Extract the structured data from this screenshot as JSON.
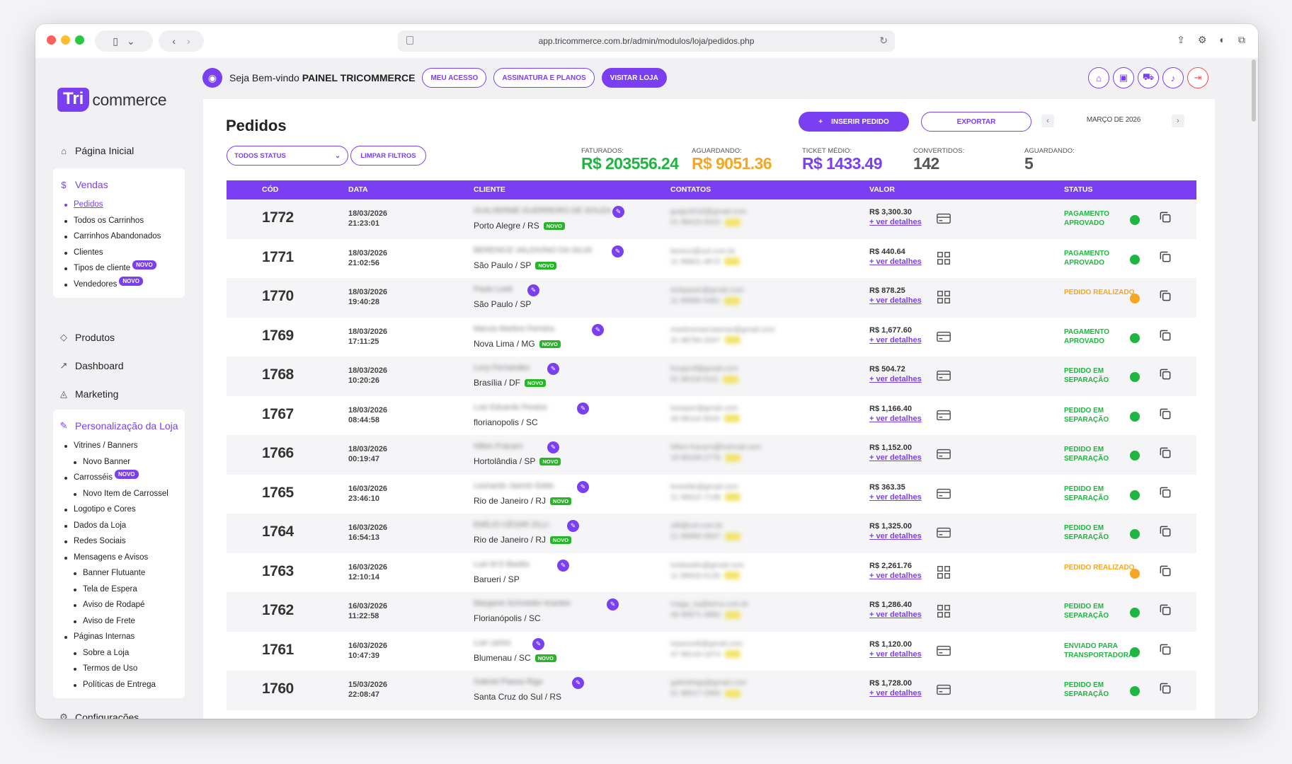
{
  "browser": {
    "url": "app.tricommerce.com.br/admin/modulos/loja/pedidos.php"
  },
  "logo": {
    "badge": "Tri",
    "text": "commerce"
  },
  "nav": {
    "home": "Página Inicial",
    "vendas": {
      "label": "Vendas",
      "items": [
        {
          "label": "Pedidos",
          "active": true,
          "novo": false
        },
        {
          "label": "Todos os Carrinhos",
          "novo": false
        },
        {
          "label": "Carrinhos Abandonados",
          "novo": false
        },
        {
          "label": "Clientes",
          "novo": false
        },
        {
          "label": "Tipos de cliente",
          "novo": true
        },
        {
          "label": "Vendedores",
          "novo": true
        }
      ]
    },
    "produtos": "Produtos",
    "dashboard": "Dashboard",
    "marketing": "Marketing",
    "personalizacao": {
      "label": "Personalização da Loja",
      "items": [
        {
          "label": "Vitrines / Banners",
          "level": 1
        },
        {
          "label": "Novo Banner",
          "level": 2
        },
        {
          "label": "Carrosséis",
          "level": 1,
          "novo": true
        },
        {
          "label": "Novo Item de Carrossel",
          "level": 2
        },
        {
          "label": "Logotipo e Cores",
          "level": 1
        },
        {
          "label": "Dados da Loja",
          "level": 1
        },
        {
          "label": "Redes Sociais",
          "level": 1
        },
        {
          "label": "Mensagens e Avisos",
          "level": 1
        },
        {
          "label": "Banner Flutuante",
          "level": 2
        },
        {
          "label": "Tela de Espera",
          "level": 2
        },
        {
          "label": "Aviso de Rodapé",
          "level": 2
        },
        {
          "label": "Aviso de Frete",
          "level": 2
        },
        {
          "label": "Páginas Internas",
          "level": 1
        },
        {
          "label": "Sobre a Loja",
          "level": 2
        },
        {
          "label": "Termos de Uso",
          "level": 2
        },
        {
          "label": "Políticas de Entrega",
          "level": 2
        }
      ]
    },
    "configuracoes": "Configurações",
    "novo_label": "NOVO"
  },
  "topbar": {
    "welcome_prefix": "Seja Bem-vindo",
    "welcome_name": "PAINEL TRICOMMERCE",
    "meu_acesso": "MEU ACESSO",
    "assinatura": "ASSINATURA E PLANOS",
    "visitar": "VISITAR LOJA"
  },
  "page": {
    "title": "Pedidos",
    "insert_button": "INSERIR PEDIDO",
    "export_button": "EXPORTAR",
    "month": "MARÇO DE 2026",
    "status_filter": "TODOS STATUS",
    "clear_filters": "LIMPAR FILTROS"
  },
  "stats": {
    "faturados": {
      "label": "FATURADOS:",
      "value": "R$ 203556.24",
      "color": "#1fb541"
    },
    "aguardando_valor": {
      "label": "AGUARDANDO:",
      "value": "R$ 9051.36",
      "color": "#f5a623"
    },
    "ticket": {
      "label": "TICKET MÉDIO:",
      "value": "R$ 1433.49",
      "color": "#7b3ff2"
    },
    "convertidos": {
      "label": "CONVERTIDOS:",
      "value": "142",
      "color": "#555555"
    },
    "aguardando_qtd": {
      "label": "AGUARDANDO:",
      "value": "5",
      "color": "#555555"
    }
  },
  "table": {
    "headers": {
      "code": "CÓD",
      "date": "DATA",
      "client": "CLIENTE",
      "contacts": "CONTATOS",
      "value": "VALOR",
      "status": "STATUS"
    },
    "details_label": "+ ver detalhes",
    "novo_label": "NOVO",
    "rows": [
      {
        "code": "1772",
        "date": "18/03/2026",
        "time": "21:23:01",
        "client": "GUILHERME GUERREIRO DE SOUZA",
        "city": "Porto Alegre / RS",
        "novo": true,
        "email": "guigo2018@gmail.com",
        "phone": "51 99415-5022",
        "amount": "R$ 3,300.30",
        "pay": "card",
        "status": "PAGAMENTO APROVADO",
        "color": "green"
      },
      {
        "code": "1771",
        "date": "18/03/2026",
        "time": "21:02:56",
        "client": "BERENICE VALDIVINO DA SILVA",
        "city": "São Paulo / SP",
        "novo": true,
        "email": "bereco@uol.com.br",
        "phone": "11 99801-4873",
        "amount": "R$ 440.64",
        "pay": "pix",
        "status": "PAGAMENTO APROVADO",
        "color": "green"
      },
      {
        "code": "1770",
        "date": "18/03/2026",
        "time": "19:40:28",
        "client": "Paulo Look",
        "city": "São Paulo / SP",
        "novo": false,
        "email": "lookpaulo@gmail.com",
        "phone": "11 99996-5481",
        "amount": "R$ 878.25",
        "pay": "pix",
        "status": "PEDIDO REALIZADO",
        "color": "orange"
      },
      {
        "code": "1769",
        "date": "18/03/2026",
        "time": "17:11:25",
        "client": "Marcia Martins Ferreira",
        "city": "Nova Lima / MG",
        "novo": true,
        "email": "martinsmarciasmar@gmail.com",
        "phone": "31 98784-2047",
        "amount": "R$ 1,677.60",
        "pay": "card",
        "status": "PAGAMENTO APROVADO",
        "color": "green"
      },
      {
        "code": "1768",
        "date": "18/03/2026",
        "time": "10:20:26",
        "client": "Lucy Fernandes",
        "city": "Brasília / DF",
        "novo": true,
        "email": "lucyprof@gmail.com",
        "phone": "61 99118-0111",
        "amount": "R$ 504.72",
        "pay": "card",
        "status": "PEDIDO EM SEPARAÇÃO",
        "color": "green"
      },
      {
        "code": "1767",
        "date": "18/03/2026",
        "time": "08:44:58",
        "client": "Luis Eduardo Pereira",
        "city": "florianopolis / SC",
        "novo": false,
        "email": "luiseper@gmail.com",
        "phone": "48 99116-6520",
        "amount": "R$ 1,166.40",
        "pay": "card",
        "status": "PEDIDO EM SEPARAÇÃO",
        "color": "green"
      },
      {
        "code": "1766",
        "date": "18/03/2026",
        "time": "00:19:47",
        "client": "Hilton Fracaro",
        "city": "Hortolândia / SP",
        "novo": true,
        "email": "hilton.fracaro@hotmail.com",
        "phone": "19 99156-2776",
        "amount": "R$ 1,152.00",
        "pay": "card",
        "status": "PEDIDO EM SEPARAÇÃO",
        "color": "green"
      },
      {
        "code": "1765",
        "date": "16/03/2026",
        "time": "23:46:10",
        "client": "Leonardo Jasmin Eddo",
        "city": "Rio de Janeiro / RJ",
        "novo": true,
        "email": "leoeddo@gmail.com",
        "phone": "21 99022-7139",
        "amount": "R$ 363.35",
        "pay": "card",
        "status": "PEDIDO EM SEPARAÇÃO",
        "color": "green"
      },
      {
        "code": "1764",
        "date": "16/03/2026",
        "time": "16:54:13",
        "client": "EMÍLIO CÉSAR ZILLI",
        "city": "Rio de Janeiro / RJ",
        "novo": true,
        "email": "zilli@uol.com.br",
        "phone": "21 99986-3647",
        "amount": "R$ 1,325.00",
        "pay": "card",
        "status": "PEDIDO EM SEPARAÇÃO",
        "color": "green"
      },
      {
        "code": "1763",
        "date": "16/03/2026",
        "time": "12:10:14",
        "client": "Luis M D Basilio",
        "city": "Barueri / SP",
        "novo": false,
        "email": "luisbasilio@gmail.com",
        "phone": "11 99003-6128",
        "amount": "R$ 2,261.76",
        "pay": "pix",
        "status": "PEDIDO REALIZADO",
        "color": "orange"
      },
      {
        "code": "1762",
        "date": "16/03/2026",
        "time": "11:22:58",
        "client": "Margaret Schneider Arantes",
        "city": "Florianópolis / SC",
        "novo": false,
        "email": "maga_sa@terra.com.br",
        "phone": "48 99971-3882",
        "amount": "R$ 1,286.40",
        "pay": "pix",
        "status": "PEDIDO EM SEPARAÇÃO",
        "color": "green"
      },
      {
        "code": "1761",
        "date": "16/03/2026",
        "time": "10:47:39",
        "client": "Luiz carlos",
        "city": "Blumenau / SC",
        "novo": true,
        "email": "lcpassotti@gmail.com",
        "phone": "47 99143-1674",
        "amount": "R$ 1,120.00",
        "pay": "card",
        "status": "ENVIADO PARA TRANSPORTADORA",
        "color": "green"
      },
      {
        "code": "1760",
        "date": "15/03/2026",
        "time": "22:08:47",
        "client": "Gabriel Piassa Riga",
        "city": "Santa Cruz do Sul / RS",
        "novo": false,
        "email": "gabrielriga@gmail.com",
        "phone": "51 98017-2960",
        "amount": "R$ 1,728.00",
        "pay": "card",
        "status": "PEDIDO EM SEPARAÇÃO",
        "color": "green"
      }
    ]
  }
}
